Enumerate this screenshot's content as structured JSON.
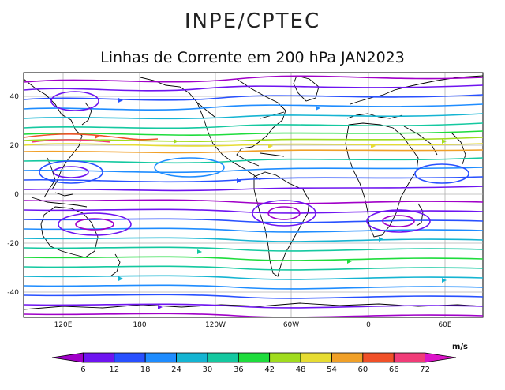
{
  "header": {
    "organization": "INPE/CPTEC",
    "title": "Linhas de Corrente em 200 hPa JAN2023"
  },
  "map": {
    "lon_ticks": [
      "120E",
      "180",
      "120W",
      "60W",
      "0",
      "60E"
    ],
    "lat_ticks": [
      "40",
      "20",
      "0",
      "-20",
      "-40"
    ]
  },
  "colorbar": {
    "unit": "m/s",
    "labels": [
      "6",
      "12",
      "18",
      "24",
      "30",
      "36",
      "42",
      "48",
      "54",
      "60",
      "66",
      "72"
    ],
    "colors": [
      "#a000c8",
      "#6e14f0",
      "#2850ff",
      "#1e8cff",
      "#14b4d2",
      "#14c8a0",
      "#1edc3c",
      "#a0dc1e",
      "#e6dc32",
      "#f0a028",
      "#f05028",
      "#f03c78",
      "#dc14c8"
    ]
  }
}
